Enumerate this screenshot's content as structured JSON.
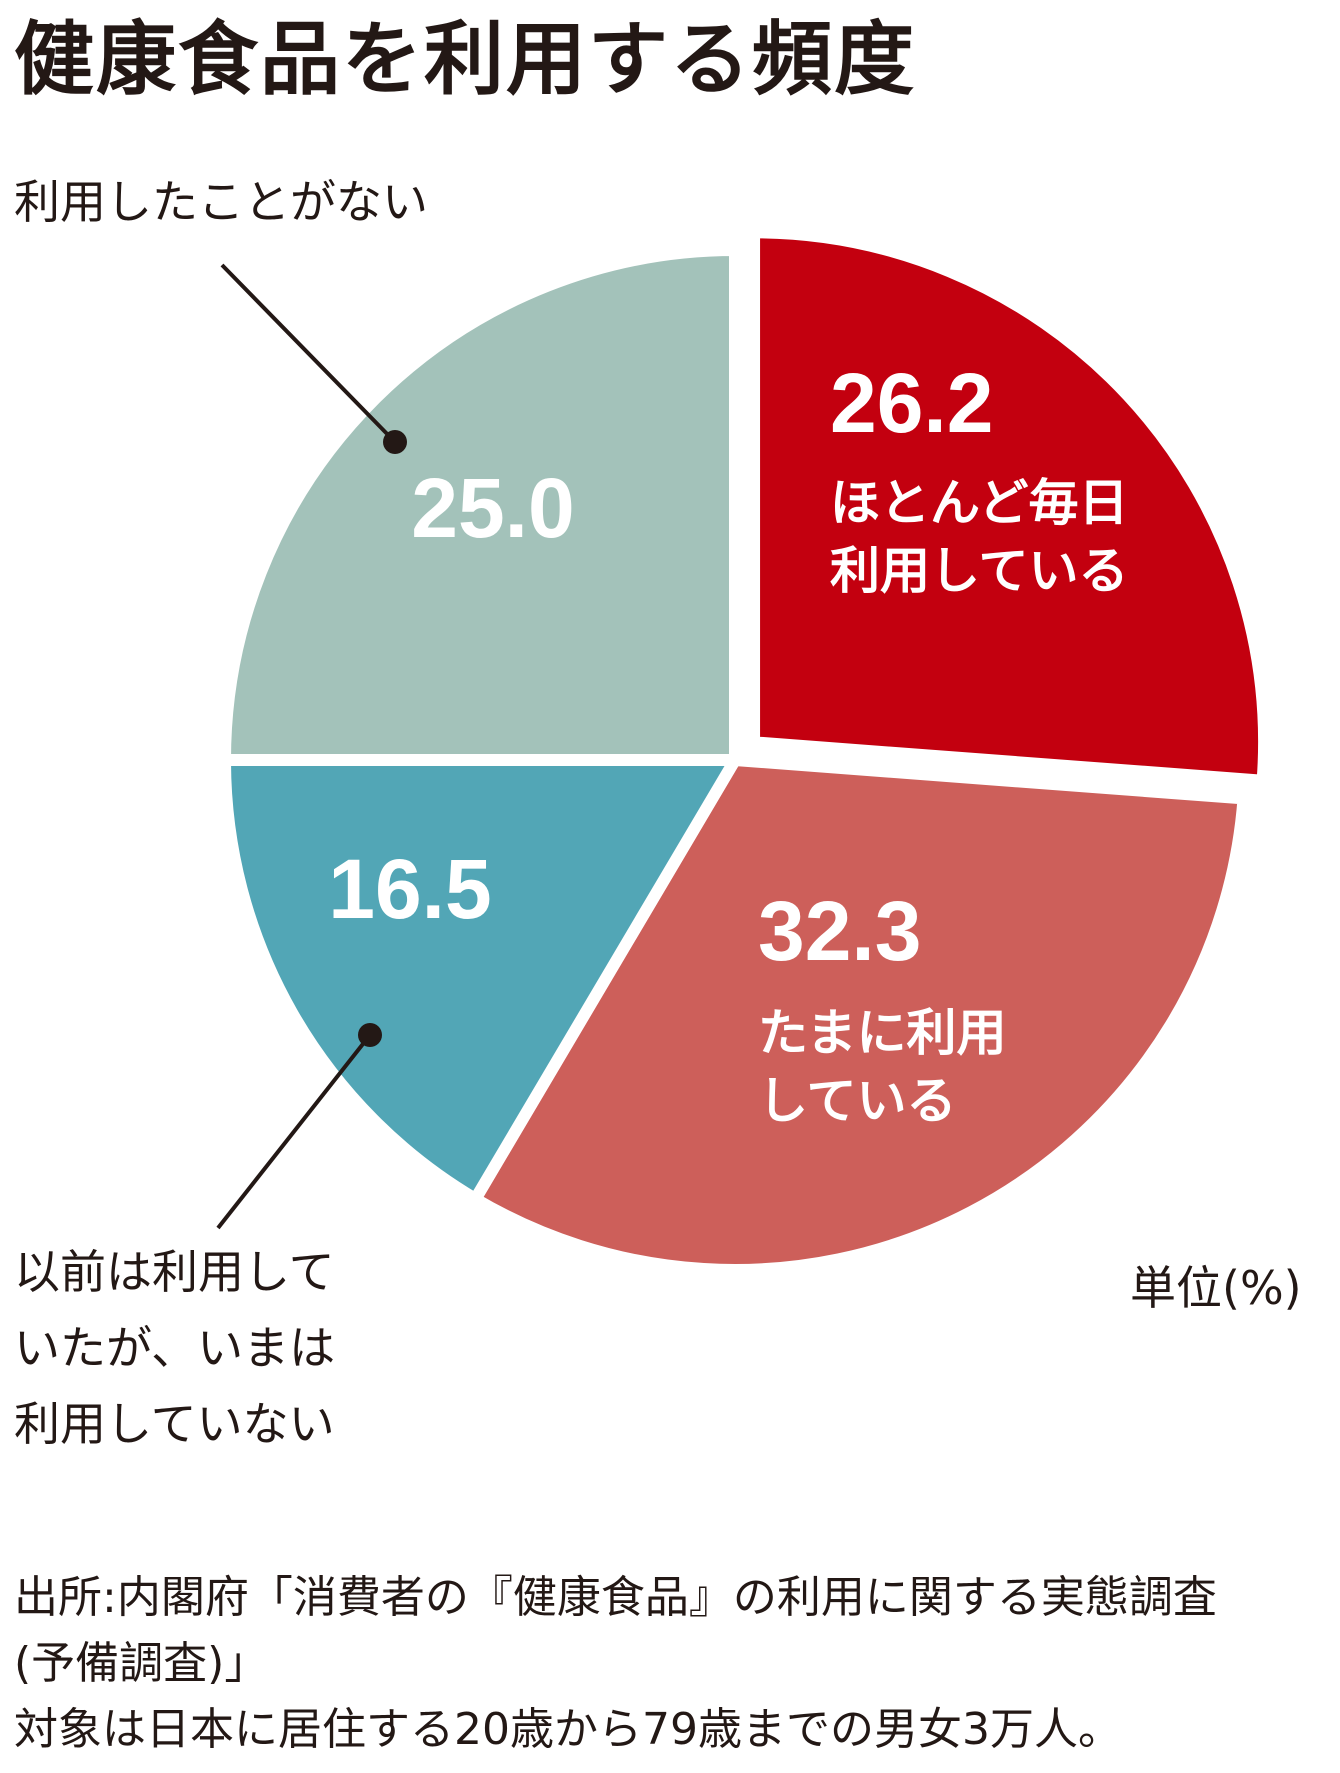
{
  "title": "健康食品を利用する頻度",
  "chart_data": {
    "type": "pie",
    "title": "健康食品を利用する頻度",
    "unit": "単位(%)",
    "start_angle_deg": 0,
    "direction": "clockwise",
    "slices": [
      {
        "label": "ほとんど毎日利用している",
        "label_lines": [
          "ほとんど毎日",
          "利用している"
        ],
        "value": 26.2,
        "color": "#c3000f",
        "value_text": "26.2",
        "label_inside": true
      },
      {
        "label": "たまに利用している",
        "label_lines": [
          "たまに利用",
          "している"
        ],
        "value": 32.3,
        "color": "#cd5f5a",
        "value_text": "32.3",
        "label_inside": true
      },
      {
        "label": "以前は利用していたが、いまは利用していない",
        "label_lines": [
          "以前は利用して",
          "いたが、いまは",
          "利用していない"
        ],
        "value": 16.5,
        "color": "#52a6b6",
        "value_text": "16.5",
        "label_inside": false
      },
      {
        "label": "利用したことがない",
        "label_lines": [
          "利用したことがない"
        ],
        "value": 25.0,
        "color": "#a3c2ba",
        "value_text": "25.0",
        "label_inside": false
      }
    ],
    "exploded_slice": "ほとんど毎日利用している",
    "value_label_color": "#ffffff",
    "leader_color": "#231815"
  },
  "unit_label": "単位(%)",
  "source_lines": [
    "出所:内閣府「消費者の『健康食品』の利用に関する実態調査",
    "(予備調査)」",
    "対象は日本に居住する20歳から79歳までの男女3万人。"
  ]
}
